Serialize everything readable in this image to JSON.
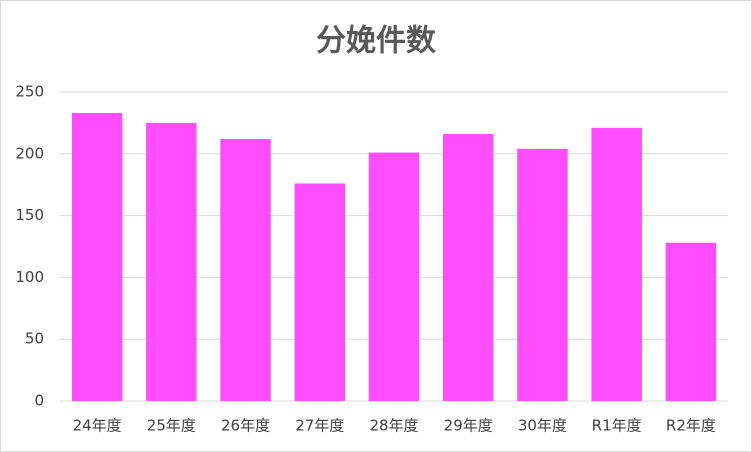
{
  "chart_data": {
    "type": "bar",
    "title": "分娩件数",
    "categories": [
      "24年度",
      "25年度",
      "26年度",
      "27年度",
      "28年度",
      "29年度",
      "30年度",
      "R1年度",
      "R2年度"
    ],
    "values": [
      233,
      225,
      212,
      176,
      201,
      216,
      204,
      221,
      128
    ],
    "color": "#ff4dff",
    "ylim": [
      0,
      250
    ],
    "yticks": [
      0,
      50,
      100,
      150,
      200,
      250
    ],
    "grid": true
  }
}
